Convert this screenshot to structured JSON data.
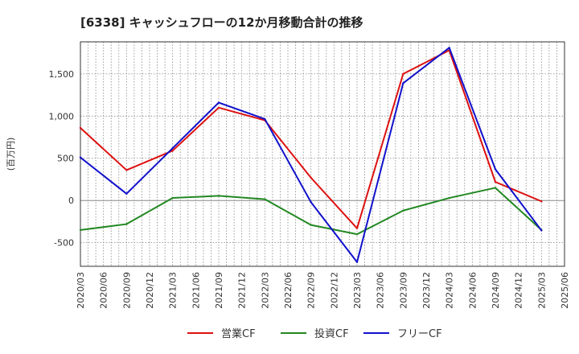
{
  "chart_data": {
    "type": "line",
    "title": "[6338]  キャッシュフローの12か月移動合計の推移",
    "ylabel": "(百万円)",
    "xlabel": "",
    "ylim": [
      -780,
      1880
    ],
    "y_ticks": [
      -500,
      0,
      500,
      1000,
      1500
    ],
    "y_tick_labels": [
      "-500",
      "0",
      "500",
      "1,000",
      "1,500"
    ],
    "grid": true,
    "legend_position": "bottom",
    "categories": [
      "2020/03",
      "2020/06",
      "2020/09",
      "2020/12",
      "2021/03",
      "2021/06",
      "2021/09",
      "2021/12",
      "2022/03",
      "2022/06",
      "2022/09",
      "2022/12",
      "2023/03",
      "2023/06",
      "2023/09",
      "2023/12",
      "2024/03",
      "2024/06",
      "2024/09",
      "2024/12",
      "2025/03",
      "2025/06"
    ],
    "series": [
      {
        "name": "営業CF",
        "color": "#dd1111",
        "values": [
          860,
          null,
          360,
          null,
          590,
          null,
          1100,
          null,
          950,
          null,
          270,
          null,
          -330,
          null,
          1500,
          null,
          1780,
          null,
          220,
          null,
          -10,
          null
        ]
      },
      {
        "name": "投資CF",
        "color": "#228822",
        "values": [
          -350,
          null,
          -280,
          null,
          30,
          null,
          55,
          null,
          15,
          null,
          -290,
          null,
          -400,
          null,
          -120,
          null,
          30,
          null,
          150,
          null,
          -350,
          null
        ]
      },
      {
        "name": "フリーCF",
        "color": "#1111cc",
        "values": [
          510,
          null,
          80,
          null,
          620,
          null,
          1160,
          null,
          965,
          null,
          -20,
          null,
          -730,
          null,
          1390,
          null,
          1810,
          null,
          370,
          null,
          -355,
          null
        ]
      }
    ]
  }
}
